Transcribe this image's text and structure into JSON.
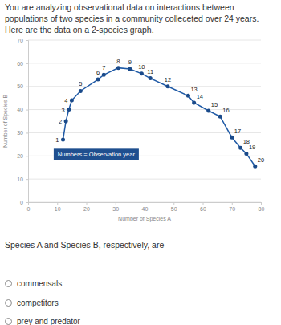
{
  "intro": "You are analyzing observational data on interactions between populations of two species in a community colleceted over 24 years.  Here are the data on a 2-species graph.",
  "chart_data": {
    "type": "line",
    "marker": "circle",
    "color": "#1f5aa6",
    "x_label": "Number of Species A",
    "y_label": "Number of Species B",
    "annotation": "Numbers = Observation year",
    "x": [
      12,
      13,
      14,
      15,
      18,
      24,
      26,
      31,
      35,
      39,
      42,
      48,
      55,
      57,
      62,
      66,
      70,
      73,
      75,
      78
    ],
    "values": [
      27,
      35,
      40,
      44,
      48,
      53,
      55,
      58,
      57.5,
      55.5,
      53.5,
      50,
      46,
      43,
      39.5,
      37,
      28,
      23.5,
      21,
      15.5
    ],
    "point_labels": [
      "1",
      "2",
      "3",
      "4",
      "5",
      "6",
      "7",
      "8",
      "9",
      "10",
      "11",
      "12",
      "13",
      "14",
      "15",
      "16",
      "17",
      "18",
      "19",
      "20"
    ],
    "xlim": [
      0,
      80
    ],
    "xticks": [
      0,
      10,
      20,
      30,
      40,
      50,
      60,
      70,
      80
    ],
    "ylim": [
      0,
      70
    ],
    "yticks": [
      0,
      10,
      20,
      30,
      40,
      50,
      60,
      70
    ],
    "grid": true
  },
  "question": "Species A and Species B, respectively, are",
  "options": [
    "commensals",
    "competitors",
    "prey and predator"
  ]
}
